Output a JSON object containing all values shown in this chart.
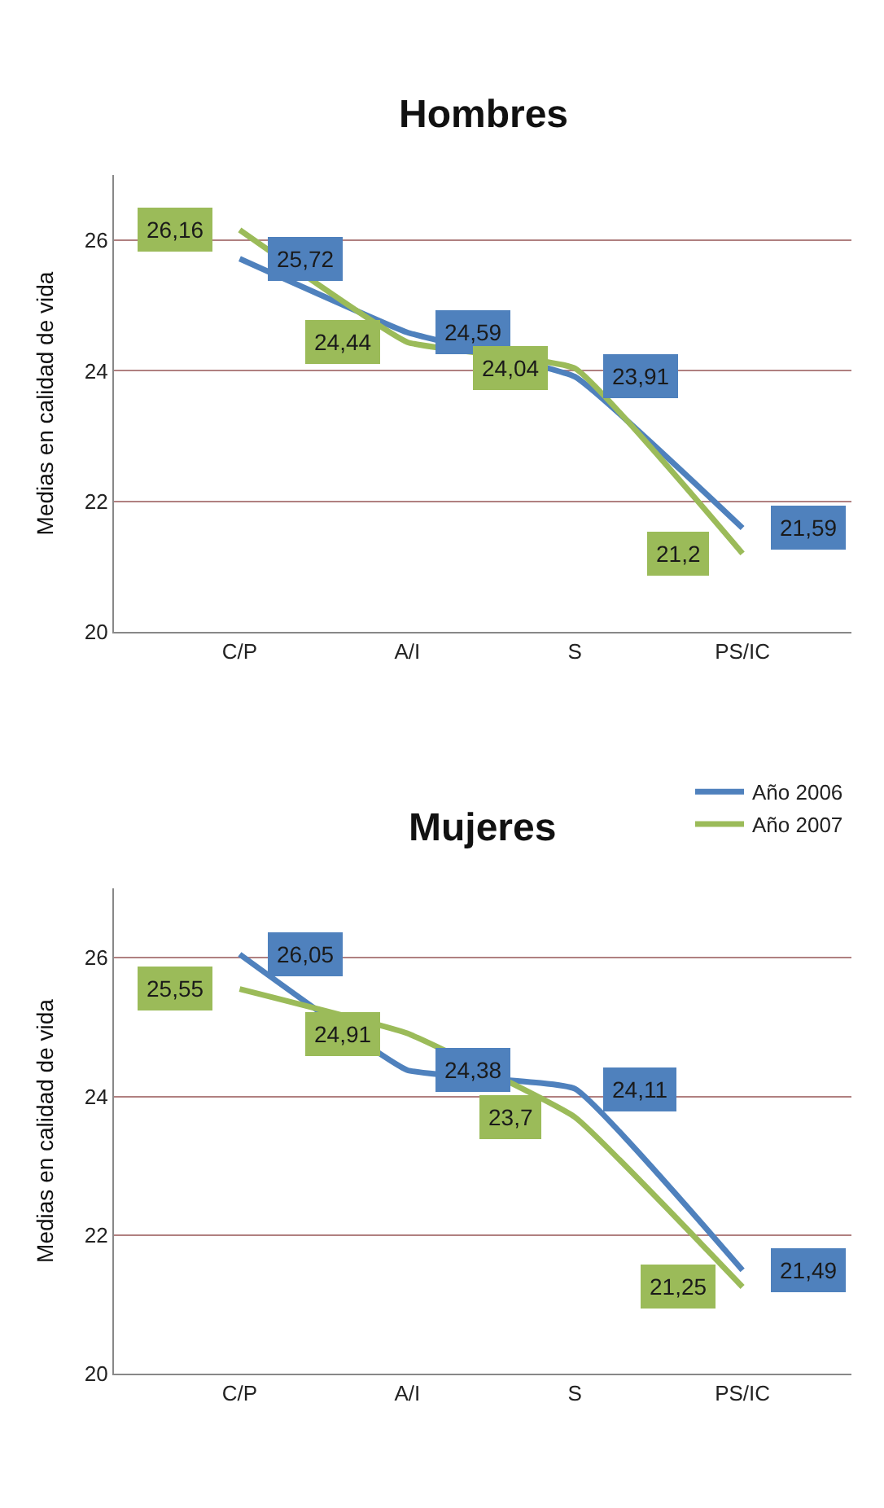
{
  "chart_data": [
    {
      "type": "line",
      "title": "Hombres",
      "ylabel": "Medias en calidad de vida",
      "categories": [
        "C/P",
        "A/I",
        "S",
        "PS/IC"
      ],
      "ylim": [
        20,
        27
      ],
      "yticks": [
        20,
        22,
        24,
        26
      ],
      "grid": "y",
      "legend": false,
      "series": [
        {
          "color": "#4f81bd",
          "values": [
            25.72,
            24.59,
            23.91,
            21.59
          ],
          "value_labels": [
            "25,72",
            "24,59",
            "23,91",
            "21,59"
          ]
        },
        {
          "color": "#9bbb59",
          "values": [
            26.16,
            24.44,
            24.04,
            21.2
          ],
          "value_labels": [
            "26,16",
            "24,44",
            "24,04",
            "21,2"
          ]
        }
      ]
    },
    {
      "type": "line",
      "title": "Mujeres",
      "ylabel": "Medias en calidad de vida",
      "categories": [
        "C/P",
        "A/I",
        "S",
        "PS/IC"
      ],
      "ylim": [
        20,
        27
      ],
      "yticks": [
        20,
        22,
        24,
        26
      ],
      "grid": "y",
      "legend": "top right",
      "series": [
        {
          "name": "Año 2006",
          "color": "#4f81bd",
          "values": [
            26.05,
            24.38,
            24.11,
            21.49
          ],
          "value_labels": [
            "26,05",
            "24,38",
            "24,11",
            "21,49"
          ]
        },
        {
          "name": "Año 2007",
          "color": "#9bbb59",
          "values": [
            25.55,
            24.91,
            23.7,
            21.25
          ],
          "value_labels": [
            "25,55",
            "24,91",
            "23,7",
            "21,25"
          ]
        }
      ]
    }
  ]
}
